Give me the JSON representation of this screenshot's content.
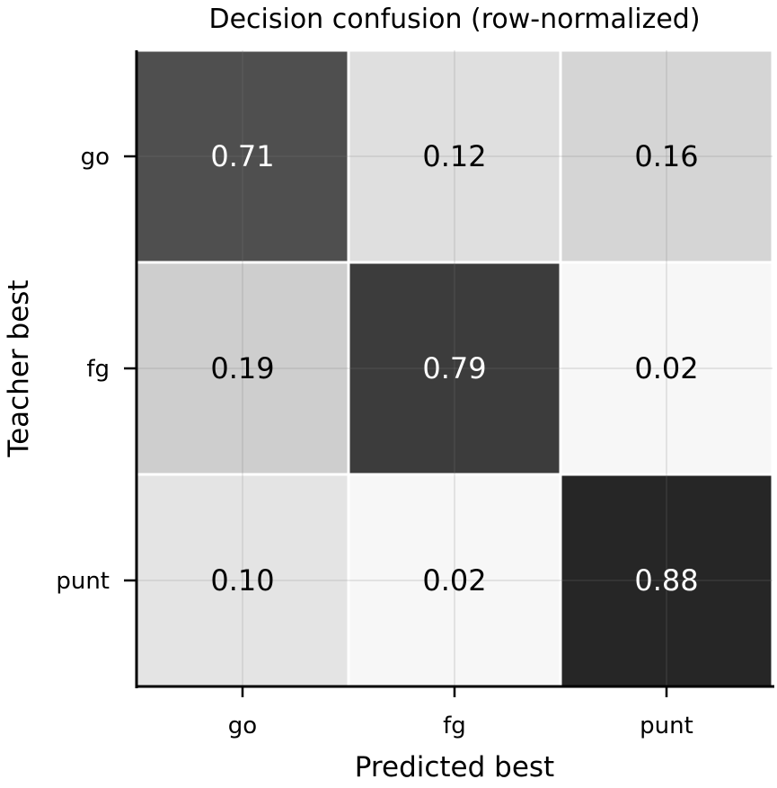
{
  "chart_data": {
    "type": "heatmap",
    "title": "Decision confusion (row-normalized)",
    "xlabel": "Predicted best",
    "ylabel": "Teacher best",
    "x_categories": [
      "go",
      "fg",
      "punt"
    ],
    "y_categories": [
      "go",
      "fg",
      "punt"
    ],
    "values": [
      [
        0.71,
        0.12,
        0.16
      ],
      [
        0.19,
        0.79,
        0.02
      ],
      [
        0.1,
        0.02,
        0.88
      ]
    ],
    "value_labels": [
      [
        "0.71",
        "0.12",
        "0.16"
      ],
      [
        "0.19",
        "0.79",
        "0.02"
      ],
      [
        "0.10",
        "0.02",
        "0.88"
      ]
    ],
    "colormap": "Greys",
    "value_range": [
      0,
      1
    ],
    "grid": true
  },
  "colors": {
    "low": "#ffffff",
    "high": "#000000",
    "dark_text": "#000000",
    "light_text": "#ffffff"
  }
}
